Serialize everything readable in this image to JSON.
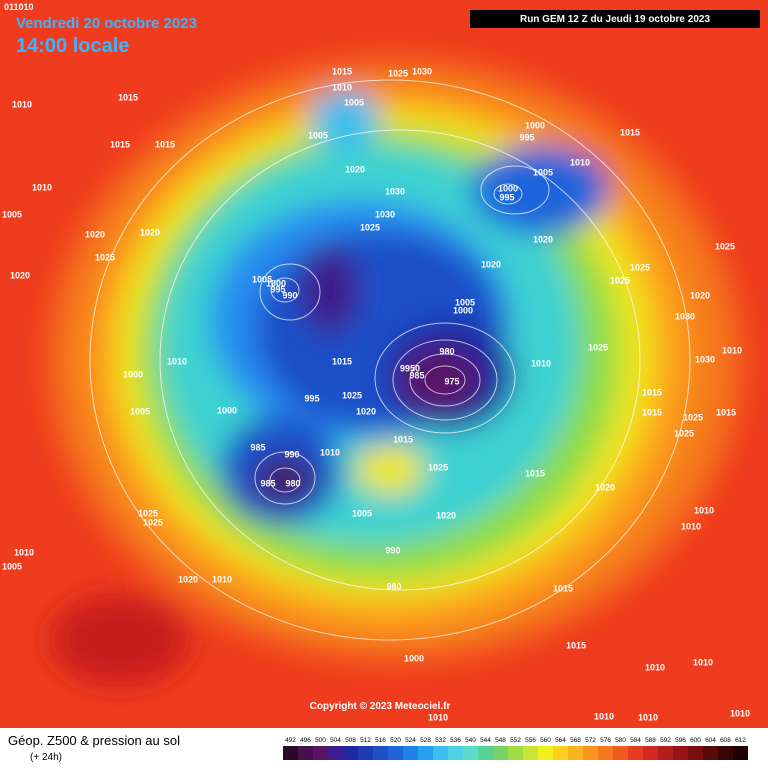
{
  "header": {
    "valid_date": "Vendredi 20 octobre 2023",
    "valid_time": "14:00 locale",
    "run": "Run GEM 12 Z du Jeudi 19 octobre 2023",
    "corner_label": "011010"
  },
  "copyright": "Copyright © 2023 Meteociel.fr",
  "legend": {
    "title": "Géop. Z500 & pression au sol",
    "subtitle": "(+ 24h)",
    "scale": {
      "values": [
        492,
        496,
        500,
        504,
        508,
        512,
        516,
        520,
        524,
        528,
        532,
        536,
        540,
        544,
        548,
        552,
        556,
        560,
        564,
        568,
        572,
        576,
        580,
        584,
        588,
        592,
        596,
        600,
        604,
        608,
        612
      ],
      "colors": [
        "#2a0a2a",
        "#46104a",
        "#5a1466",
        "#3c1e8c",
        "#1e28a0",
        "#1e3cb4",
        "#1e50c8",
        "#1e64dc",
        "#1e82e6",
        "#28a0f0",
        "#3cbef0",
        "#50d2e6",
        "#5adcc8",
        "#5ad296",
        "#78d264",
        "#a0dc46",
        "#c8e632",
        "#f0f01e",
        "#fad21e",
        "#fab41e",
        "#fa961e",
        "#f5781e",
        "#f05a1e",
        "#e63c1e",
        "#d2281e",
        "#b41e1e",
        "#961414",
        "#781010",
        "#5a0a0a",
        "#3c0505",
        "#1e0000"
      ]
    }
  },
  "pressure_labels": [
    "1010",
    "1015",
    "1015",
    "1015",
    "1010",
    "1005",
    "1020",
    "1020",
    "1025",
    "1020",
    "1015",
    "1010",
    "1005",
    "1025",
    "1030",
    "1005",
    "1020",
    "1030",
    "1030",
    "1025",
    "1000",
    "995",
    "1005",
    "1010",
    "1015",
    "1000",
    "995",
    "1020",
    "1020",
    "1025",
    "1025",
    "1025",
    "1020",
    "1030",
    "1025",
    "1030",
    "1010",
    "1005",
    "1000",
    "995",
    "990",
    "1005",
    "1000",
    "980",
    "9950",
    "985",
    "975",
    "1010",
    "1010",
    "1000",
    "1005",
    "1015",
    "1025",
    "995",
    "1020",
    "1000",
    "1015",
    "1010",
    "985",
    "990",
    "985",
    "980",
    "1025",
    "1015",
    "1020",
    "1015",
    "1015",
    "1025",
    "1015",
    "1025",
    "1010",
    "1010",
    "1025",
    "1025",
    "1005",
    "1020",
    "1010",
    "1005",
    "990",
    "980",
    "1020",
    "1010",
    "1015",
    "1015",
    "1010",
    "1010",
    "1000",
    "1010",
    "1010",
    "1010",
    "1010"
  ]
}
